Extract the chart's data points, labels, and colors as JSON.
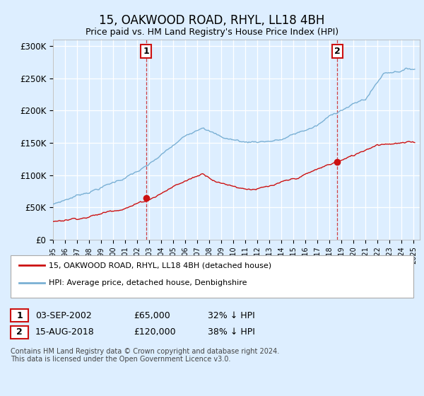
{
  "title": "15, OAKWOOD ROAD, RHYL, LL18 4BH",
  "subtitle": "Price paid vs. HM Land Registry's House Price Index (HPI)",
  "bg_color": "#ddeeff",
  "plot_bg_color": "#ddeeff",
  "hpi_color": "#7ab0d4",
  "price_color": "#cc1111",
  "ylim": [
    0,
    310000
  ],
  "yticks": [
    0,
    50000,
    100000,
    150000,
    200000,
    250000,
    300000
  ],
  "ytick_labels": [
    "£0",
    "£50K",
    "£100K",
    "£150K",
    "£200K",
    "£250K",
    "£300K"
  ],
  "sale1_x": 2002.75,
  "sale1_price": 65000,
  "sale1_label": "1",
  "sale2_x": 2018.63,
  "sale2_price": 120000,
  "sale2_label": "2",
  "legend_line1": "15, OAKWOOD ROAD, RHYL, LL18 4BH (detached house)",
  "legend_line2": "HPI: Average price, detached house, Denbighshire",
  "note1_label": "1",
  "note1_date": "03-SEP-2002",
  "note1_price": "£65,000",
  "note1_pct": "32% ↓ HPI",
  "note2_label": "2",
  "note2_date": "15-AUG-2018",
  "note2_price": "£120,000",
  "note2_pct": "38% ↓ HPI",
  "footer": "Contains HM Land Registry data © Crown copyright and database right 2024.\nThis data is licensed under the Open Government Licence v3.0."
}
